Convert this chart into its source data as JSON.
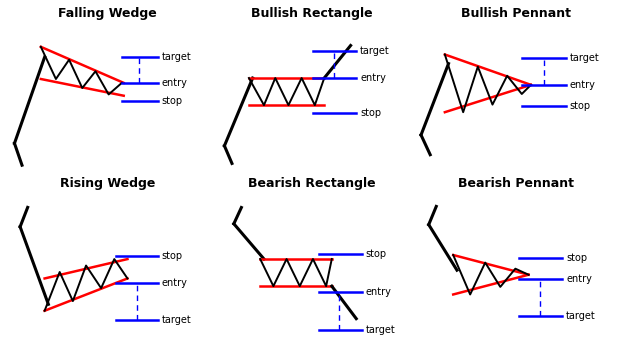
{
  "bg_color": "#ffffff",
  "title_fontsize": 9,
  "label_fontsize": 7,
  "panels": [
    {
      "title": "Falling Wedge",
      "type": "falling_wedge",
      "row": 0,
      "col": 0
    },
    {
      "title": "Bullish Rectangle",
      "type": "bullish_rectangle",
      "row": 0,
      "col": 1
    },
    {
      "title": "Bullish Pennant",
      "type": "bullish_pennant",
      "row": 0,
      "col": 2
    },
    {
      "title": "Rising Wedge",
      "type": "rising_wedge",
      "row": 1,
      "col": 0
    },
    {
      "title": "Bearish Rectangle",
      "type": "bearish_rectangle",
      "row": 1,
      "col": 1
    },
    {
      "title": "Bearish Pennant",
      "type": "bearish_pennant",
      "row": 1,
      "col": 2
    }
  ]
}
